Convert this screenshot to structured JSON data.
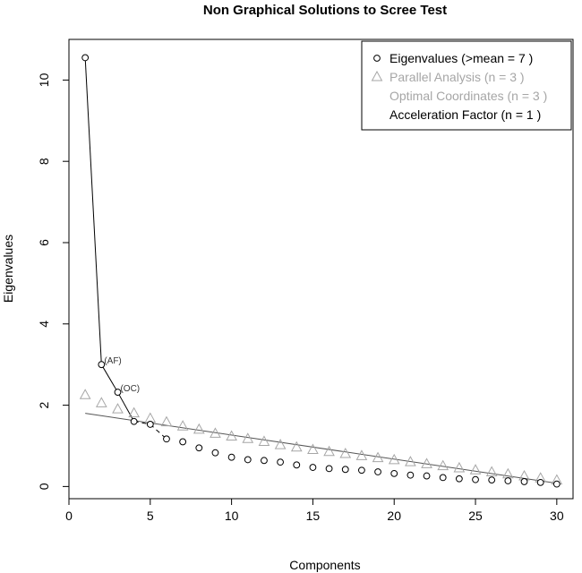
{
  "chart_data": {
    "type": "scatter",
    "title": "Non Graphical Solutions to Scree Test",
    "xlabel": "Components",
    "ylabel": "Eigenvalues",
    "xlim": [
      0,
      31
    ],
    "ylim": [
      -0.3,
      11
    ],
    "x_ticks": [
      0,
      5,
      10,
      15,
      20,
      25,
      30
    ],
    "y_ticks": [
      0,
      2,
      4,
      6,
      8,
      10
    ],
    "grid": false,
    "legend_position": "top-right",
    "series": [
      {
        "name": "Eigenvalues (>mean  =  7 )",
        "marker": "circle",
        "color": "#000000",
        "x": [
          1,
          2,
          3,
          4,
          5,
          6,
          7,
          8,
          9,
          10,
          11,
          12,
          13,
          14,
          15,
          16,
          17,
          18,
          19,
          20,
          21,
          22,
          23,
          24,
          25,
          26,
          27,
          28,
          29,
          30
        ],
        "values": [
          10.55,
          3.0,
          2.32,
          1.6,
          1.53,
          1.17,
          1.1,
          0.95,
          0.83,
          0.72,
          0.66,
          0.64,
          0.6,
          0.53,
          0.47,
          0.44,
          0.42,
          0.4,
          0.36,
          0.32,
          0.28,
          0.26,
          0.22,
          0.19,
          0.17,
          0.16,
          0.14,
          0.12,
          0.1,
          0.06
        ]
      },
      {
        "name": "Parallel Analysis (n =  3 )",
        "marker": "triangle",
        "color": "#a6a6a6",
        "x": [
          1,
          2,
          3,
          4,
          5,
          6,
          7,
          8,
          9,
          10,
          11,
          12,
          13,
          14,
          15,
          16,
          17,
          18,
          19,
          20,
          21,
          22,
          23,
          24,
          25,
          26,
          27,
          28,
          29,
          30
        ],
        "values": [
          2.25,
          2.05,
          1.9,
          1.8,
          1.67,
          1.58,
          1.48,
          1.4,
          1.3,
          1.23,
          1.17,
          1.1,
          1.02,
          0.96,
          0.9,
          0.85,
          0.8,
          0.75,
          0.7,
          0.65,
          0.6,
          0.55,
          0.5,
          0.45,
          0.4,
          0.35,
          0.3,
          0.25,
          0.2,
          0.15
        ]
      }
    ],
    "connecting_line": {
      "description_color": "#000000",
      "x": [
        1,
        2,
        3,
        4,
        5,
        6
      ],
      "values": [
        10.55,
        3.0,
        2.32,
        1.6,
        1.53,
        1.17
      ]
    },
    "regression_line": {
      "color": "#555555",
      "x": [
        1,
        30
      ],
      "values": [
        1.8,
        0.08
      ]
    },
    "annotations": [
      {
        "text": "(AF)",
        "x": 2,
        "y": 3.0
      },
      {
        "text": "(OC)",
        "x": 3,
        "y": 2.32
      }
    ],
    "legend": [
      {
        "label": "Eigenvalues (>mean  =  7 )",
        "marker": "circle",
        "color": "#000000"
      },
      {
        "label": "Parallel Analysis (n =  3 )",
        "marker": "triangle",
        "color": "#a6a6a6"
      },
      {
        "label": "Optimal Coordinates (n =  3 )",
        "marker": "none",
        "color": "#a6a6a6"
      },
      {
        "label": "Acceleration Factor (n =  1 )",
        "marker": "none",
        "color": "#000000"
      }
    ]
  }
}
